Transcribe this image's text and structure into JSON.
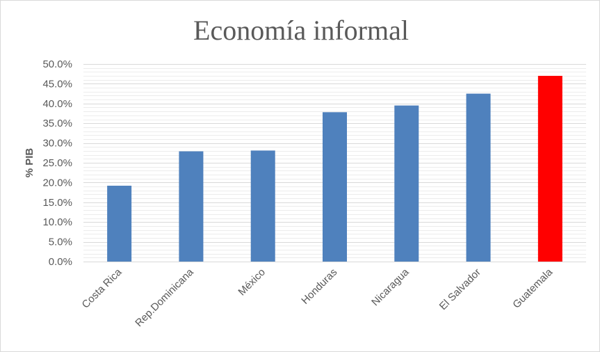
{
  "chart_data": {
    "type": "bar",
    "title": "Economía informal",
    "xlabel": "",
    "ylabel": "% PIB",
    "ylim": [
      0,
      50
    ],
    "y_ticks": [
      "0.0%",
      "5.0%",
      "10.0%",
      "15.0%",
      "20.0%",
      "25.0%",
      "30.0%",
      "35.0%",
      "40.0%",
      "45.0%",
      "50.0%"
    ],
    "categories": [
      "Costa Rica",
      "Rep.Dominicana",
      "México",
      "Honduras",
      "Nicaragua",
      "El Salvador",
      "Guatemala"
    ],
    "values": [
      19.2,
      27.9,
      28.1,
      37.8,
      39.5,
      42.5,
      47.0
    ],
    "bar_colors": [
      "#4f81bd",
      "#4f81bd",
      "#4f81bd",
      "#4f81bd",
      "#4f81bd",
      "#4f81bd",
      "#ff0000"
    ],
    "grid": true,
    "legend": "none"
  }
}
